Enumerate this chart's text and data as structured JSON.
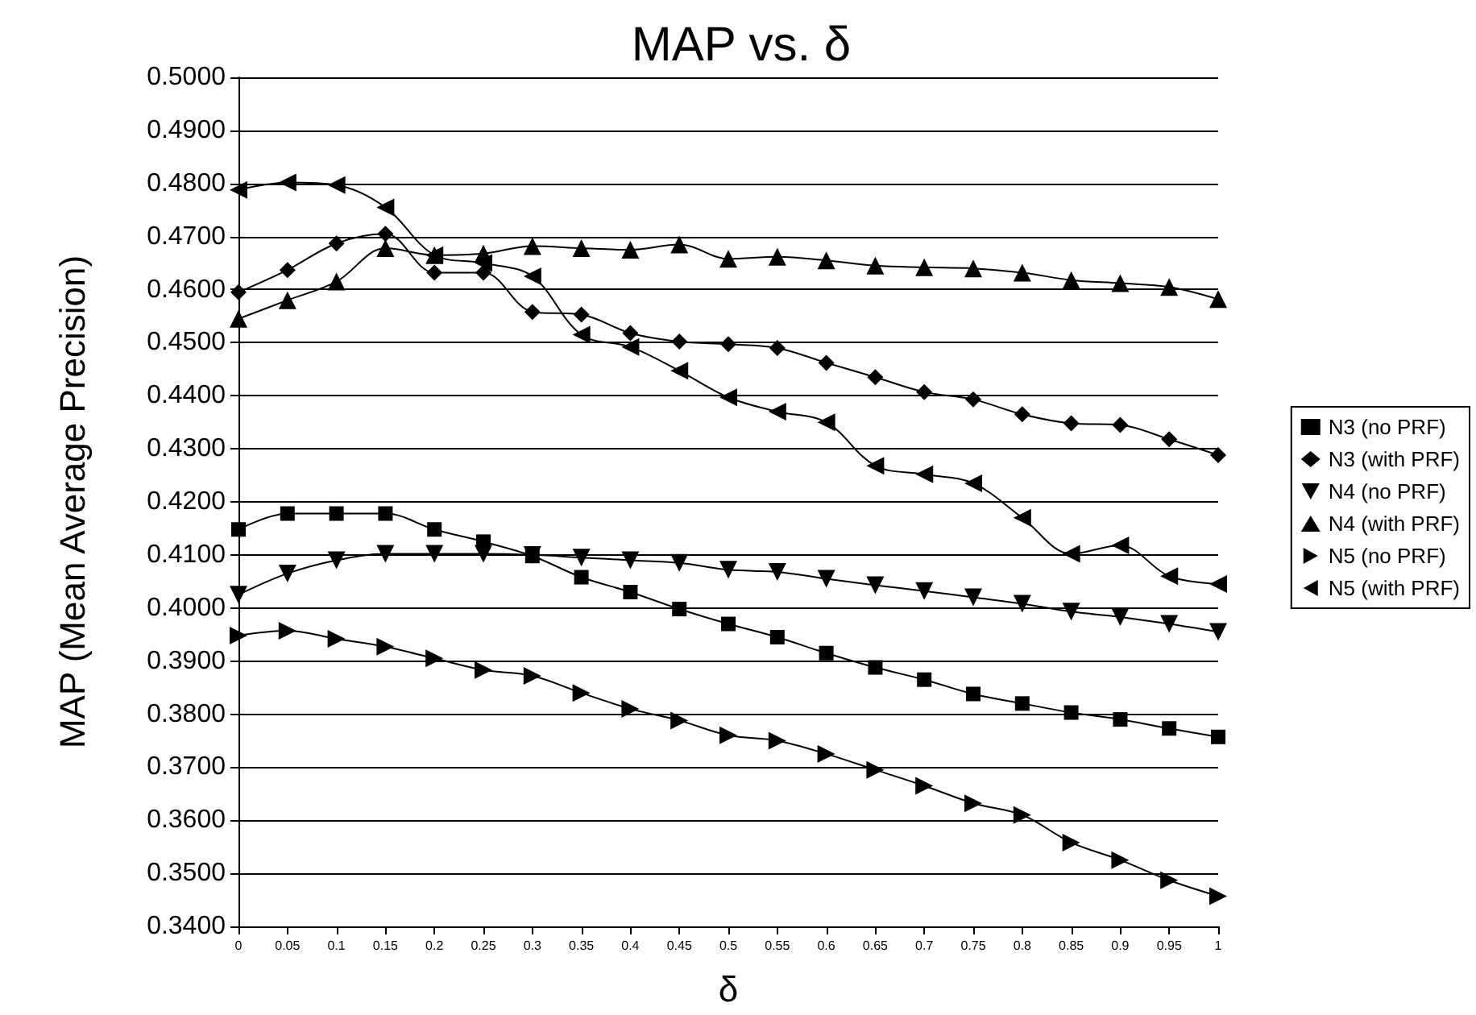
{
  "chart_data": {
    "type": "line",
    "title": "MAP vs. δ",
    "xlabel": "δ",
    "ylabel": "MAP (Mean Average Precision)",
    "categories": [
      "0",
      "0.05",
      "0.1",
      "0.15",
      "0.2",
      "0.25",
      "0.3",
      "0.35",
      "0.4",
      "0.45",
      "0.5",
      "0.55",
      "0.6",
      "0.65",
      "0.7",
      "0.75",
      "0.8",
      "0.85",
      "0.9",
      "0.95",
      "1"
    ],
    "series": [
      {
        "name": "N3 (no PRF)",
        "color": "#000000",
        "marker": "square",
        "values": [
          0.4148,
          0.4178,
          0.4178,
          0.4178,
          0.4148,
          0.4125,
          0.4098,
          0.4058,
          0.403,
          0.3998,
          0.397,
          0.3945,
          0.3915,
          0.3888,
          0.3865,
          0.3838,
          0.382,
          0.3803,
          0.379,
          0.3773,
          0.3757
        ]
      },
      {
        "name": "N3 (with PRF)",
        "color": "#000000",
        "marker": "diamond",
        "values": [
          0.4595,
          0.4637,
          0.4687,
          0.4705,
          0.4632,
          0.4632,
          0.4558,
          0.4553,
          0.4518,
          0.4502,
          0.4497,
          0.449,
          0.4462,
          0.4435,
          0.4407,
          0.4393,
          0.4365,
          0.4348,
          0.4345,
          0.4318,
          0.4288
        ]
      },
      {
        "name": "N4 (no PRF)",
        "color": "#000000",
        "marker": "triangle-down",
        "values": [
          0.4025,
          0.4065,
          0.409,
          0.4102,
          0.4102,
          0.4102,
          0.41,
          0.4095,
          0.409,
          0.4085,
          0.4072,
          0.4068,
          0.4055,
          0.4043,
          0.4032,
          0.402,
          0.4008,
          0.3993,
          0.3983,
          0.397,
          0.3955
        ]
      },
      {
        "name": "N4 (with PRF)",
        "color": "#000000",
        "marker": "triangle",
        "values": [
          0.4545,
          0.458,
          0.4615,
          0.4678,
          0.4665,
          0.4668,
          0.4682,
          0.4678,
          0.4675,
          0.4685,
          0.4658,
          0.4662,
          0.4655,
          0.4645,
          0.4642,
          0.464,
          0.4632,
          0.4618,
          0.4612,
          0.4605,
          0.4582
        ]
      },
      {
        "name": "N5 (no PRF)",
        "color": "#000000",
        "marker": "triangle-right",
        "values": [
          0.3948,
          0.3957,
          0.3942,
          0.3927,
          0.3905,
          0.3883,
          0.3872,
          0.384,
          0.381,
          0.3788,
          0.376,
          0.375,
          0.3725,
          0.3695,
          0.3665,
          0.3632,
          0.361,
          0.3558,
          0.3525,
          0.3487,
          0.3457
        ]
      },
      {
        "name": "N5 (with PRF)",
        "color": "#000000",
        "marker": "triangle-left",
        "values": [
          0.4788,
          0.4802,
          0.4797,
          0.4755,
          0.4665,
          0.465,
          0.4625,
          0.4515,
          0.4492,
          0.4447,
          0.4397,
          0.437,
          0.435,
          0.4268,
          0.4252,
          0.4235,
          0.417,
          0.4102,
          0.4118,
          0.406,
          0.4045
        ]
      }
    ],
    "ylim": [
      0.34,
      0.5
    ],
    "yticks": [
      {
        "value": 0.34,
        "label": "0.3400"
      },
      {
        "value": 0.35,
        "label": "0.3500"
      },
      {
        "value": 0.36,
        "label": "0.3600"
      },
      {
        "value": 0.37,
        "label": "0.3700"
      },
      {
        "value": 0.38,
        "label": "0.3800"
      },
      {
        "value": 0.39,
        "label": "0.3900"
      },
      {
        "value": 0.4,
        "label": "0.4000"
      },
      {
        "value": 0.41,
        "label": "0.4100"
      },
      {
        "value": 0.42,
        "label": "0.4200"
      },
      {
        "value": 0.43,
        "label": "0.4300"
      },
      {
        "value": 0.44,
        "label": "0.4400"
      },
      {
        "value": 0.45,
        "label": "0.4500"
      },
      {
        "value": 0.46,
        "label": "0.4600"
      },
      {
        "value": 0.47,
        "label": "0.4700"
      },
      {
        "value": 0.48,
        "label": "0.4800"
      },
      {
        "value": 0.49,
        "label": "0.4900"
      },
      {
        "value": 0.5,
        "label": "0.5000"
      }
    ],
    "grid": "y",
    "legend": "right",
    "line_style": "solid"
  }
}
